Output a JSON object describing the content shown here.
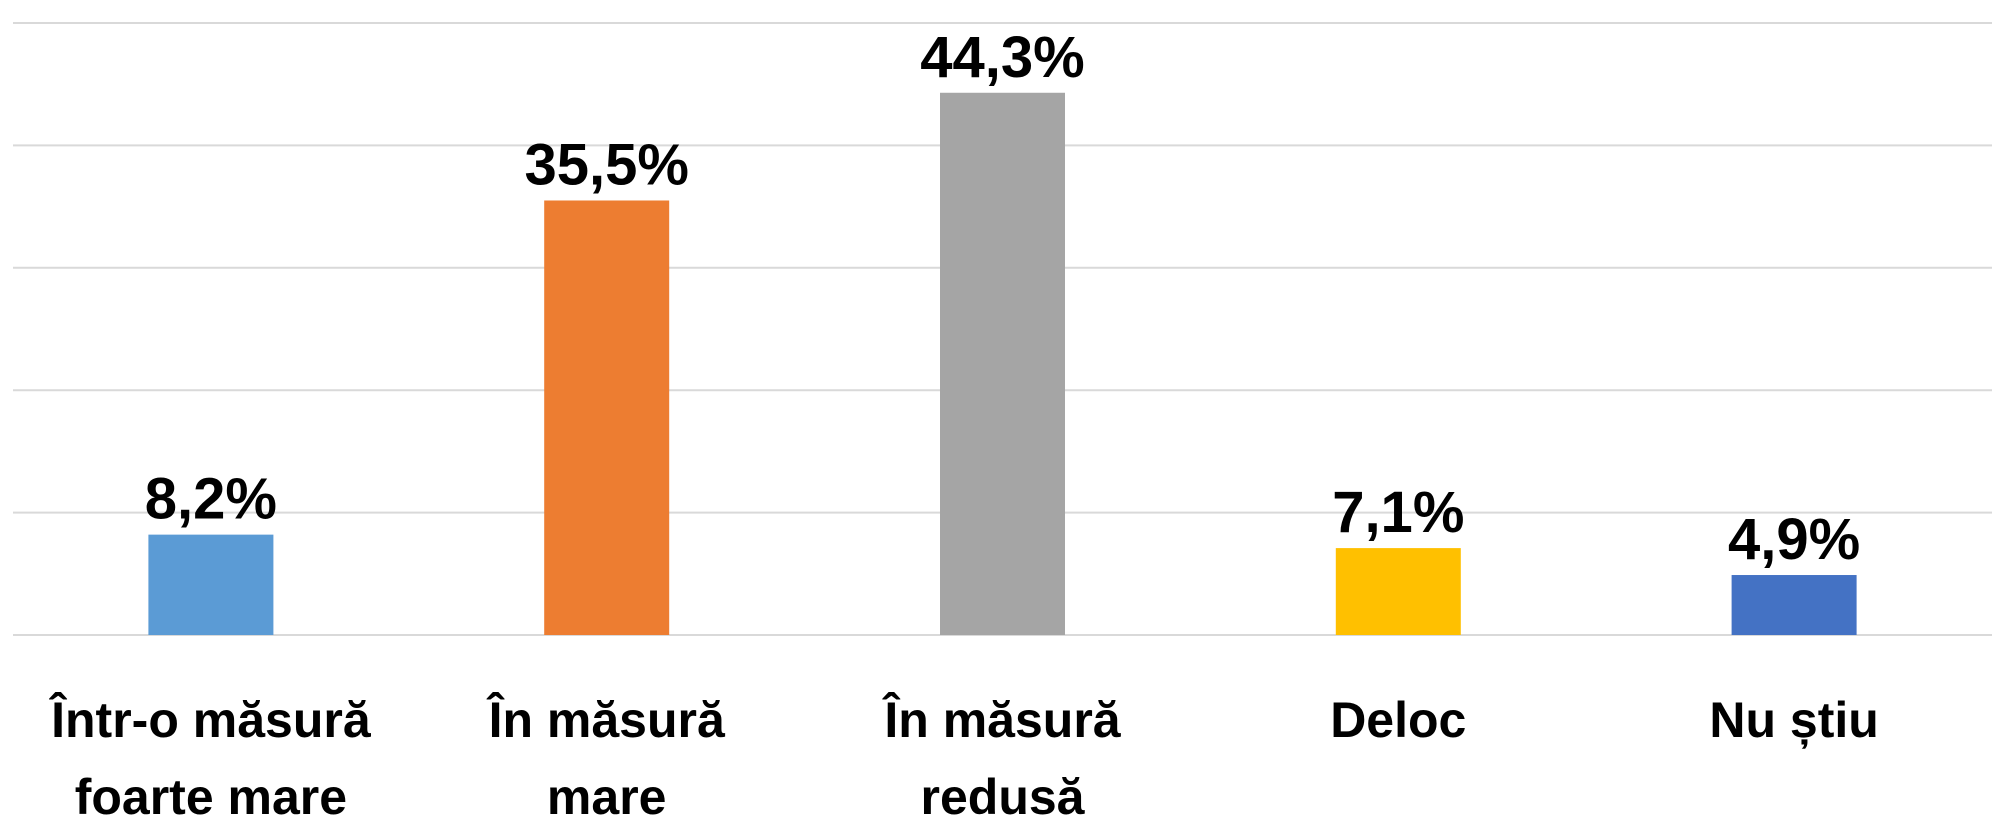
{
  "chart_data": {
    "type": "bar",
    "categories": [
      "Într-o măsură foarte mare",
      "În măsură mare",
      "În măsură redusă",
      "Deloc",
      "Nu știu"
    ],
    "values": [
      8.2,
      35.5,
      44.3,
      7.1,
      4.9
    ],
    "value_labels": [
      "8,2%",
      "35,5%",
      "44,3%",
      "7,1%",
      "4,9%"
    ],
    "colors": [
      "#5b9bd5",
      "#ed7d31",
      "#a5a5a5",
      "#ffc000",
      "#4472c4"
    ],
    "ylim": [
      0,
      50
    ],
    "yticks": [
      0,
      10,
      20,
      30,
      40,
      50
    ],
    "grid": true
  }
}
